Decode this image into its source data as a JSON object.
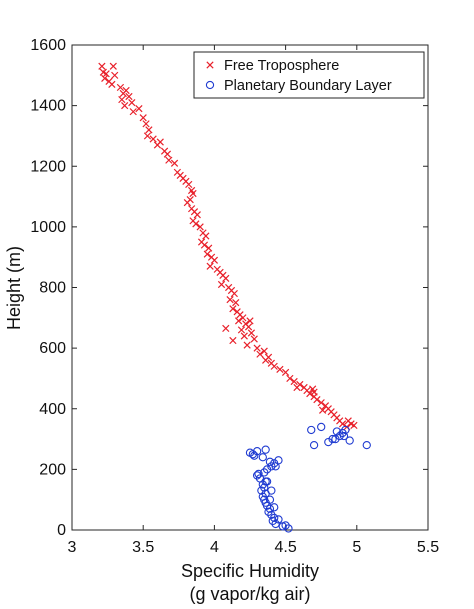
{
  "chart_data": {
    "type": "scatter",
    "title": "",
    "xlabel_lines": [
      "Specific Humidity",
      "(g vapor/kg air)"
    ],
    "ylabel": "Height (m)",
    "xlim": [
      3,
      5.5
    ],
    "ylim": [
      0,
      1600
    ],
    "xticks": [
      "3",
      "3.5",
      "4",
      "4.5",
      "5",
      "5.5"
    ],
    "yticks": [
      "0",
      "200",
      "400",
      "600",
      "800",
      "1000",
      "1200",
      "1400",
      "1600"
    ],
    "grid": false,
    "legend_position": "top-right",
    "series": [
      {
        "name": "Free Troposphere",
        "marker": "x",
        "color": "#e8202a",
        "points": [
          [
            3.21,
            1530
          ],
          [
            3.22,
            1510
          ],
          [
            3.24,
            1505
          ],
          [
            3.23,
            1490
          ],
          [
            3.26,
            1480
          ],
          [
            3.28,
            1470
          ],
          [
            3.29,
            1530
          ],
          [
            3.3,
            1500
          ],
          [
            3.34,
            1460
          ],
          [
            3.36,
            1440
          ],
          [
            3.35,
            1420
          ],
          [
            3.38,
            1450
          ],
          [
            3.37,
            1400
          ],
          [
            3.4,
            1430
          ],
          [
            3.42,
            1410
          ],
          [
            3.43,
            1380
          ],
          [
            3.47,
            1390
          ],
          [
            3.5,
            1360
          ],
          [
            3.52,
            1340
          ],
          [
            3.54,
            1320
          ],
          [
            3.53,
            1300
          ],
          [
            3.57,
            1290
          ],
          [
            3.6,
            1270
          ],
          [
            3.62,
            1280
          ],
          [
            3.65,
            1250
          ],
          [
            3.67,
            1240
          ],
          [
            3.68,
            1220
          ],
          [
            3.72,
            1210
          ],
          [
            3.74,
            1180
          ],
          [
            3.76,
            1170
          ],
          [
            3.78,
            1160
          ],
          [
            3.8,
            1150
          ],
          [
            3.82,
            1140
          ],
          [
            3.84,
            1120
          ],
          [
            3.85,
            1110
          ],
          [
            3.83,
            1090
          ],
          [
            3.81,
            1080
          ],
          [
            3.84,
            1060
          ],
          [
            3.86,
            1050
          ],
          [
            3.88,
            1040
          ],
          [
            3.85,
            1020
          ],
          [
            3.87,
            1010
          ],
          [
            3.9,
            1000
          ],
          [
            3.92,
            980
          ],
          [
            3.94,
            970
          ],
          [
            3.91,
            950
          ],
          [
            3.93,
            940
          ],
          [
            3.96,
            930
          ],
          [
            3.95,
            910
          ],
          [
            3.98,
            900
          ],
          [
            4.0,
            890
          ],
          [
            3.97,
            870
          ],
          [
            4.02,
            860
          ],
          [
            4.04,
            850
          ],
          [
            4.06,
            840
          ],
          [
            4.08,
            830
          ],
          [
            4.05,
            810
          ],
          [
            4.1,
            800
          ],
          [
            4.12,
            790
          ],
          [
            4.14,
            780
          ],
          [
            4.11,
            760
          ],
          [
            4.15,
            750
          ],
          [
            4.13,
            730
          ],
          [
            4.16,
            720
          ],
          [
            4.18,
            710
          ],
          [
            4.2,
            700
          ],
          [
            4.17,
            690
          ],
          [
            4.22,
            680
          ],
          [
            4.24,
            670
          ],
          [
            4.19,
            660
          ],
          [
            4.26,
            650
          ],
          [
            4.21,
            640
          ],
          [
            4.28,
            630
          ],
          [
            4.23,
            610
          ],
          [
            4.3,
            600
          ],
          [
            4.32,
            580
          ],
          [
            4.36,
            560
          ],
          [
            4.4,
            550
          ],
          [
            4.42,
            540
          ],
          [
            4.46,
            530
          ],
          [
            4.5,
            520
          ],
          [
            4.53,
            500
          ],
          [
            4.56,
            490
          ],
          [
            4.6,
            480
          ],
          [
            4.63,
            470
          ],
          [
            4.65,
            460
          ],
          [
            4.67,
            450
          ],
          [
            4.7,
            440
          ],
          [
            4.72,
            430
          ],
          [
            4.75,
            420
          ],
          [
            4.78,
            410
          ],
          [
            4.8,
            400
          ],
          [
            4.82,
            390
          ],
          [
            4.84,
            380
          ],
          [
            4.86,
            370
          ],
          [
            4.88,
            360
          ],
          [
            4.9,
            350
          ],
          [
            4.93,
            340
          ],
          [
            4.96,
            350
          ],
          [
            4.98,
            345
          ],
          [
            4.13,
            625
          ],
          [
            4.08,
            665
          ],
          [
            4.25,
            690
          ],
          [
            4.35,
            590
          ],
          [
            4.38,
            570
          ],
          [
            4.58,
            470
          ],
          [
            4.7,
            455
          ],
          [
            4.76,
            395
          ],
          [
            4.94,
            360
          ],
          [
            4.69,
            465
          ]
        ]
      },
      {
        "name": "Planetary Boundary Layer",
        "marker": "o",
        "color": "#1f3bd1",
        "points": [
          [
            4.52,
            5
          ],
          [
            4.48,
            12
          ],
          [
            4.43,
            20
          ],
          [
            4.41,
            30
          ],
          [
            4.42,
            40
          ],
          [
            4.4,
            50
          ],
          [
            4.38,
            60
          ],
          [
            4.39,
            70
          ],
          [
            4.37,
            80
          ],
          [
            4.36,
            90
          ],
          [
            4.35,
            100
          ],
          [
            4.34,
            110
          ],
          [
            4.36,
            120
          ],
          [
            4.33,
            130
          ],
          [
            4.35,
            140
          ],
          [
            4.34,
            150
          ],
          [
            4.36,
            160
          ],
          [
            4.32,
            170
          ],
          [
            4.3,
            180
          ],
          [
            4.35,
            190
          ],
          [
            4.37,
            200
          ],
          [
            4.4,
            210
          ],
          [
            4.42,
            220
          ],
          [
            4.45,
            230
          ],
          [
            4.34,
            240
          ],
          [
            4.27,
            250
          ],
          [
            4.25,
            255
          ],
          [
            4.3,
            260
          ],
          [
            4.36,
            265
          ],
          [
            4.28,
            245
          ],
          [
            4.43,
            210
          ],
          [
            4.39,
            225
          ],
          [
            4.7,
            280
          ],
          [
            4.8,
            290
          ],
          [
            4.85,
            300
          ],
          [
            4.88,
            310
          ],
          [
            4.9,
            320
          ],
          [
            4.92,
            330
          ],
          [
            4.86,
            325
          ],
          [
            4.75,
            340
          ],
          [
            4.83,
            300
          ],
          [
            4.68,
            330
          ],
          [
            4.95,
            295
          ],
          [
            5.07,
            280
          ],
          [
            4.91,
            310
          ],
          [
            4.31,
            185
          ],
          [
            4.37,
            160
          ],
          [
            4.4,
            130
          ],
          [
            4.39,
            100
          ],
          [
            4.42,
            75
          ],
          [
            4.45,
            35
          ],
          [
            4.5,
            15
          ]
        ]
      }
    ]
  }
}
